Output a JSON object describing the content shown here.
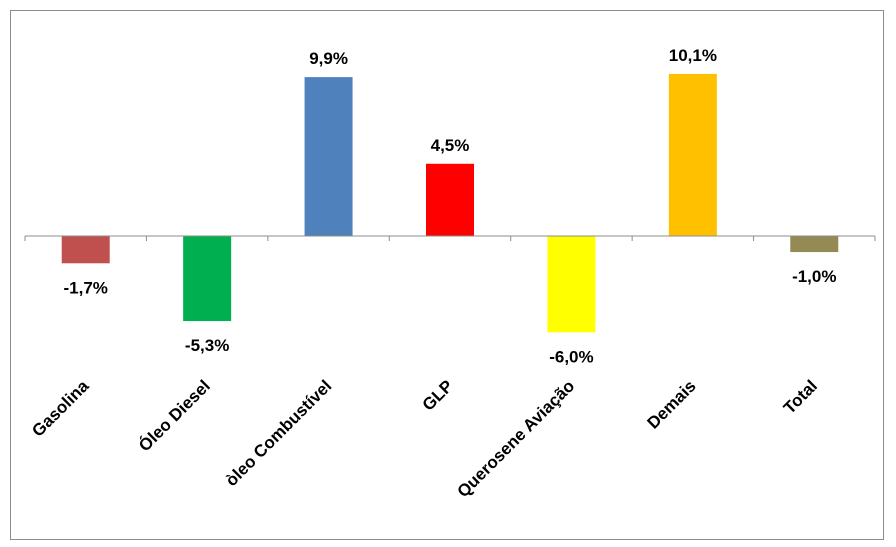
{
  "chart_data": {
    "type": "bar",
    "categories": [
      "Gasolina",
      "Óleo Diesel",
      "òleo Combustível",
      "GLP",
      "Querosene Aviação",
      "Demais",
      "Total"
    ],
    "values": [
      -1.7,
      -5.3,
      9.9,
      4.5,
      -6.0,
      10.1,
      -1.0
    ],
    "value_labels": [
      "-1,7%",
      "-5,3%",
      "9,9%",
      "4,5%",
      "-6,0%",
      "10,1%",
      "-1,0%"
    ],
    "colors": [
      "#c0504d",
      "#00b050",
      "#4f81bd",
      "#ff0000",
      "#ffff00",
      "#ffc000",
      "#948a54"
    ],
    "title": "",
    "xlabel": "",
    "ylabel": "",
    "ylim": [
      -6.5,
      10.5
    ],
    "grid": false,
    "legend": "none"
  }
}
